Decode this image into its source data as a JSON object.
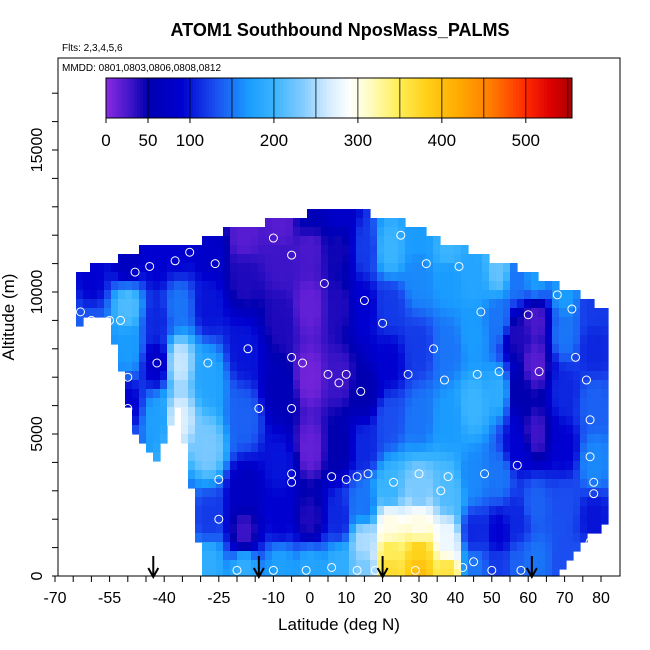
{
  "chart_data": {
    "type": "heatmap",
    "title": "ATOM1 Southbound NposMass_PALMS",
    "flights_label": "Flts: 2,3,4,5,6",
    "dates_label": "MMDD: 0801,0803,0806,0808,0812",
    "xlabel": "Latitude (deg N)",
    "ylabel": "Altitude (m)",
    "xlim": [
      -70,
      82
    ],
    "ylim": [
      0,
      17500
    ],
    "x_ticks": [
      -70,
      -55,
      -40,
      -25,
      -10,
      0,
      10,
      20,
      30,
      40,
      50,
      60,
      70,
      80
    ],
    "x_minor_step": 5,
    "y_ticks": [
      0,
      5000,
      10000,
      15000
    ],
    "colorbar": {
      "min": 0,
      "max": 555,
      "ticks": [
        0,
        50,
        100,
        200,
        300,
        400,
        500
      ],
      "stops": [
        [
          0,
          "#8a2be2"
        ],
        [
          30,
          "#3d14c8"
        ],
        [
          50,
          "#0000b0"
        ],
        [
          90,
          "#0000d0"
        ],
        [
          130,
          "#1a4ef0"
        ],
        [
          170,
          "#1a9cff"
        ],
        [
          200,
          "#3ab4ff"
        ],
        [
          235,
          "#84ccff"
        ],
        [
          265,
          "#d4ecff"
        ],
        [
          290,
          "#ffffff"
        ],
        [
          315,
          "#fffbc0"
        ],
        [
          345,
          "#fff060"
        ],
        [
          380,
          "#ffd21a"
        ],
        [
          420,
          "#ffaa00"
        ],
        [
          460,
          "#ff7a00"
        ],
        [
          500,
          "#ff2a00"
        ],
        [
          530,
          "#dd0000"
        ],
        [
          555,
          "#aa0000"
        ]
      ]
    },
    "field_points": [
      [
        -68,
        1000,
        60
      ],
      [
        -68,
        4000,
        110
      ],
      [
        -68,
        9000,
        140
      ],
      [
        -60,
        500,
        180
      ],
      [
        -60,
        2500,
        140
      ],
      [
        -60,
        5500,
        170
      ],
      [
        -60,
        8500,
        140
      ],
      [
        -60,
        10500,
        90
      ],
      [
        -50,
        500,
        170
      ],
      [
        -50,
        2000,
        110
      ],
      [
        -50,
        4500,
        140
      ],
      [
        -50,
        6000,
        90
      ],
      [
        -50,
        8000,
        170
      ],
      [
        -50,
        9500,
        210
      ],
      [
        -50,
        11000,
        70
      ],
      [
        -42,
        300,
        190
      ],
      [
        -42,
        1500,
        120
      ],
      [
        -42,
        3500,
        190
      ],
      [
        -42,
        5500,
        175
      ],
      [
        -42,
        7500,
        80
      ],
      [
        -42,
        9000,
        110
      ],
      [
        -42,
        11000,
        90
      ],
      [
        -36,
        500,
        200
      ],
      [
        -36,
        2500,
        140
      ],
      [
        -36,
        5500,
        270
      ],
      [
        -36,
        7500,
        260
      ],
      [
        -36,
        9500,
        150
      ],
      [
        -36,
        11500,
        90
      ],
      [
        -28,
        500,
        190
      ],
      [
        -28,
        2000,
        120
      ],
      [
        -28,
        4500,
        230
      ],
      [
        -28,
        7000,
        180
      ],
      [
        -28,
        9500,
        100
      ],
      [
        -28,
        11500,
        80
      ],
      [
        -18,
        300,
        190
      ],
      [
        -18,
        1500,
        30
      ],
      [
        -18,
        3000,
        70
      ],
      [
        -18,
        5500,
        140
      ],
      [
        -18,
        8000,
        100
      ],
      [
        -18,
        10500,
        40
      ],
      [
        -18,
        12000,
        20
      ],
      [
        -8,
        300,
        175
      ],
      [
        -8,
        2000,
        90
      ],
      [
        -8,
        4000,
        100
      ],
      [
        -8,
        6500,
        60
      ],
      [
        -8,
        9000,
        40
      ],
      [
        -8,
        11000,
        30
      ],
      [
        -8,
        12500,
        20
      ],
      [
        0,
        300,
        180
      ],
      [
        0,
        2000,
        40
      ],
      [
        0,
        4500,
        15
      ],
      [
        0,
        7000,
        10
      ],
      [
        0,
        9500,
        15
      ],
      [
        0,
        11500,
        25
      ],
      [
        0,
        12800,
        60
      ],
      [
        8,
        300,
        190
      ],
      [
        8,
        2000,
        110
      ],
      [
        8,
        4500,
        50
      ],
      [
        8,
        7000,
        30
      ],
      [
        8,
        9500,
        40
      ],
      [
        8,
        11500,
        45
      ],
      [
        8,
        12800,
        80
      ],
      [
        15,
        200,
        230
      ],
      [
        15,
        1200,
        250
      ],
      [
        15,
        2500,
        150
      ],
      [
        15,
        4500,
        110
      ],
      [
        15,
        6500,
        50
      ],
      [
        15,
        9500,
        90
      ],
      [
        15,
        11500,
        120
      ],
      [
        22,
        100,
        370
      ],
      [
        22,
        800,
        350
      ],
      [
        22,
        1800,
        300
      ],
      [
        22,
        3000,
        200
      ],
      [
        22,
        5500,
        130
      ],
      [
        22,
        7500,
        90
      ],
      [
        22,
        9500,
        120
      ],
      [
        22,
        11500,
        200
      ],
      [
        30,
        100,
        400
      ],
      [
        30,
        800,
        380
      ],
      [
        30,
        1800,
        300
      ],
      [
        30,
        3000,
        230
      ],
      [
        30,
        5500,
        150
      ],
      [
        30,
        8000,
        120
      ],
      [
        30,
        10500,
        160
      ],
      [
        30,
        12000,
        170
      ],
      [
        38,
        100,
        360
      ],
      [
        38,
        1200,
        280
      ],
      [
        38,
        3000,
        210
      ],
      [
        38,
        5500,
        170
      ],
      [
        38,
        8000,
        150
      ],
      [
        38,
        10500,
        170
      ],
      [
        38,
        11500,
        200
      ],
      [
        45,
        300,
        150
      ],
      [
        45,
        1500,
        110
      ],
      [
        45,
        3500,
        160
      ],
      [
        45,
        6000,
        200
      ],
      [
        45,
        8500,
        170
      ],
      [
        45,
        10500,
        180
      ],
      [
        52,
        300,
        120
      ],
      [
        52,
        1500,
        90
      ],
      [
        52,
        3500,
        150
      ],
      [
        52,
        6500,
        190
      ],
      [
        52,
        9000,
        150
      ],
      [
        52,
        10800,
        220
      ],
      [
        57,
        300,
        140
      ],
      [
        57,
        2000,
        110
      ],
      [
        57,
        4500,
        90
      ],
      [
        57,
        6500,
        50
      ],
      [
        57,
        8500,
        40
      ],
      [
        57,
        10500,
        150
      ],
      [
        62,
        500,
        150
      ],
      [
        62,
        2500,
        140
      ],
      [
        62,
        5000,
        30
      ],
      [
        62,
        7500,
        20
      ],
      [
        62,
        9000,
        25
      ],
      [
        62,
        10500,
        170
      ],
      [
        70,
        500,
        130
      ],
      [
        70,
        2500,
        130
      ],
      [
        70,
        4500,
        90
      ],
      [
        70,
        6500,
        110
      ],
      [
        70,
        8500,
        150
      ],
      [
        70,
        10000,
        170
      ],
      [
        78,
        300,
        150
      ],
      [
        78,
        2000,
        100
      ],
      [
        78,
        4000,
        160
      ],
      [
        78,
        6000,
        140
      ],
      [
        78,
        8000,
        110
      ],
      [
        78,
        9500,
        120
      ]
    ],
    "field_extent": [
      [
        -69.5,
        1000,
        10200
      ],
      [
        -67,
        5000,
        10500
      ],
      [
        -63,
        9000,
        10800
      ],
      [
        -55,
        9000,
        11000
      ],
      [
        -48,
        5000,
        11400
      ],
      [
        -42,
        4000,
        11700
      ],
      [
        -36,
        6000,
        11700
      ],
      [
        -29,
        0,
        11800
      ],
      [
        -22,
        0,
        12200
      ],
      [
        -15,
        0,
        12400
      ],
      [
        -2,
        0,
        12700
      ],
      [
        3,
        0,
        12900
      ],
      [
        13,
        0,
        12900
      ],
      [
        19,
        0,
        12700
      ],
      [
        25,
        0,
        12500
      ],
      [
        31,
        0,
        12200
      ],
      [
        37,
        0,
        11700
      ],
      [
        43,
        0,
        11500
      ],
      [
        48,
        0,
        11200
      ],
      [
        53,
        0,
        11000
      ],
      [
        58,
        0,
        10800
      ],
      [
        63,
        0,
        10500
      ],
      [
        68,
        0,
        10200
      ],
      [
        73,
        1000,
        10000
      ],
      [
        78,
        1500,
        9700
      ],
      [
        81.5,
        2000,
        9300
      ]
    ],
    "sample_points": [
      [
        -67,
        10100
      ],
      [
        -66,
        3000
      ],
      [
        -66,
        200
      ],
      [
        -63,
        9300
      ],
      [
        -60,
        9000
      ],
      [
        -59,
        2100
      ],
      [
        -57,
        8200
      ],
      [
        -55,
        9000
      ],
      [
        -55,
        2000
      ],
      [
        -53,
        6100
      ],
      [
        -50,
        7000
      ],
      [
        -50,
        5900
      ],
      [
        -50,
        5000
      ],
      [
        -50,
        3500
      ],
      [
        -51,
        3700
      ],
      [
        -52,
        9000
      ],
      [
        -51,
        11600
      ],
      [
        -48,
        10700
      ],
      [
        -47,
        3000
      ],
      [
        -44,
        10900
      ],
      [
        -42,
        7500
      ],
      [
        -40,
        1400
      ],
      [
        -37,
        11100
      ],
      [
        -33,
        11400
      ],
      [
        -28,
        7500
      ],
      [
        -26,
        11000
      ],
      [
        -25,
        3400
      ],
      [
        -25,
        2000
      ],
      [
        -17,
        8000
      ],
      [
        -14,
        5900
      ],
      [
        -10,
        11900
      ],
      [
        -5,
        11300
      ],
      [
        -5,
        7700
      ],
      [
        -5,
        5900
      ],
      [
        -5,
        3600
      ],
      [
        -5,
        3300
      ],
      [
        -2,
        7500
      ],
      [
        4,
        10300
      ],
      [
        5,
        7100
      ],
      [
        6,
        3500
      ],
      [
        8,
        6800
      ],
      [
        10,
        7100
      ],
      [
        10,
        3400
      ],
      [
        13,
        3500
      ],
      [
        14,
        6500
      ],
      [
        15,
        9700
      ],
      [
        16,
        3600
      ],
      [
        18,
        200
      ],
      [
        20,
        8900
      ],
      [
        23,
        3300
      ],
      [
        25,
        12000
      ],
      [
        27,
        7100
      ],
      [
        30,
        3600
      ],
      [
        32,
        11000
      ],
      [
        34,
        8000
      ],
      [
        36,
        3000
      ],
      [
        37,
        6900
      ],
      [
        38,
        3500
      ],
      [
        41,
        10900
      ],
      [
        42,
        300
      ],
      [
        45,
        500
      ],
      [
        46,
        7100
      ],
      [
        47,
        9300
      ],
      [
        48,
        3600
      ],
      [
        52,
        7200
      ],
      [
        57,
        3900
      ],
      [
        60,
        9200
      ],
      [
        63,
        7200
      ],
      [
        68,
        9900
      ],
      [
        72,
        9400
      ],
      [
        73,
        7700
      ],
      [
        76,
        6900
      ],
      [
        77,
        5500
      ],
      [
        77,
        4200
      ],
      [
        78,
        3300
      ],
      [
        78,
        2900
      ],
      [
        77,
        1200
      ],
      [
        79,
        700
      ],
      [
        -68,
        300
      ],
      [
        -59,
        300
      ],
      [
        -35,
        200
      ],
      [
        -20,
        200
      ],
      [
        -10,
        200
      ],
      [
        -1,
        200
      ],
      [
        6,
        300
      ],
      [
        13,
        200
      ],
      [
        29,
        200
      ],
      [
        50,
        200
      ],
      [
        58,
        200
      ]
    ],
    "arrows_x": [
      -43,
      -14,
      20,
      61
    ]
  }
}
